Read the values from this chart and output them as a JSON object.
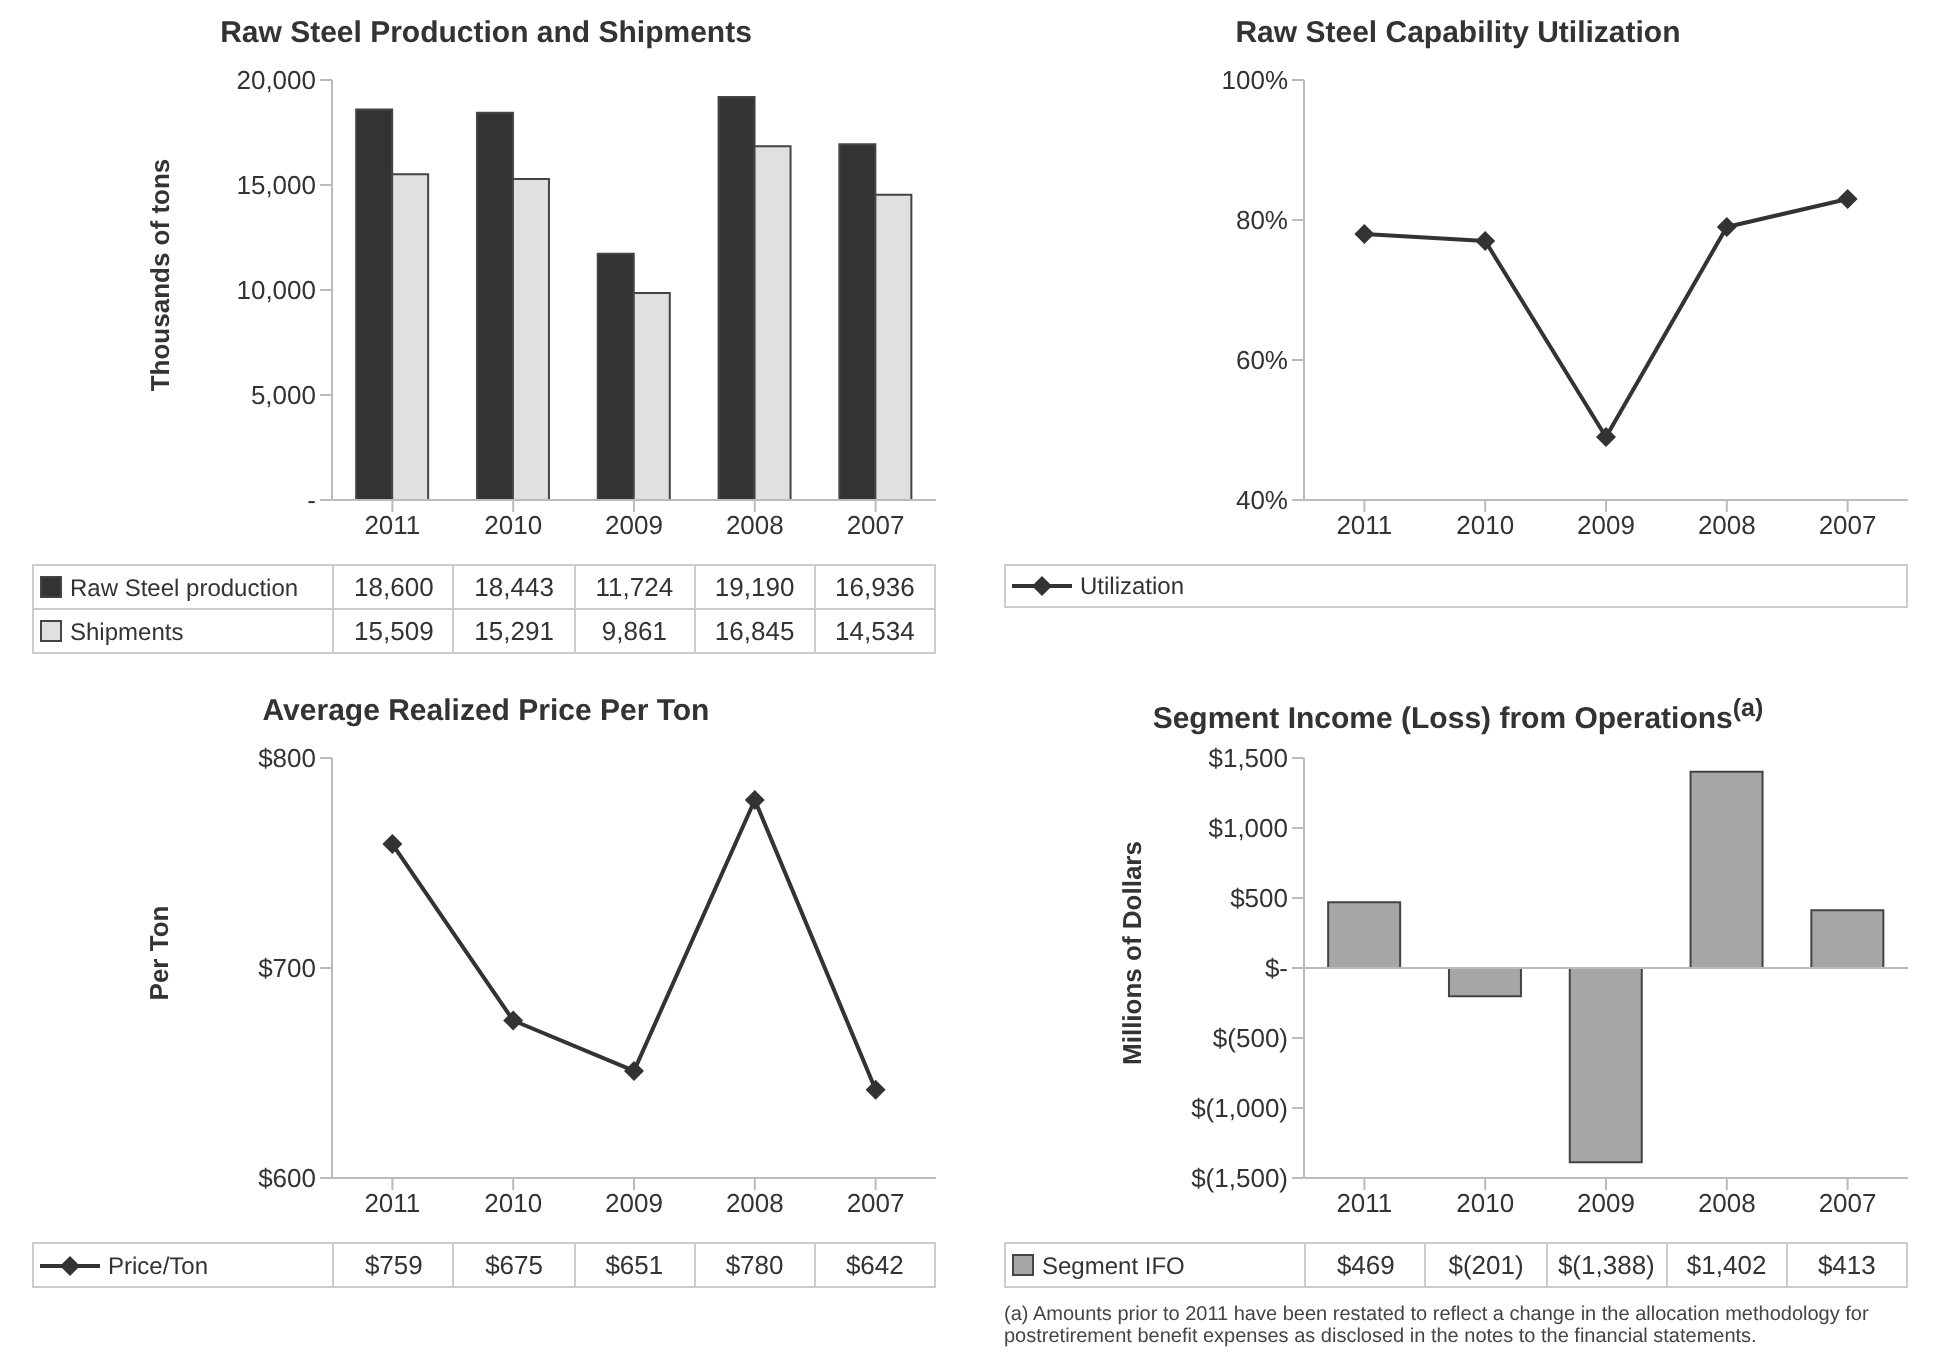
{
  "chart_data": [
    {
      "type": "bar",
      "title": "Raw Steel Production and Shipments",
      "ylabel": "Thousands of tons",
      "categories": [
        "2011",
        "2010",
        "2009",
        "2008",
        "2007"
      ],
      "ylim": [
        0,
        20000
      ],
      "yticks": [
        {
          "value": 0,
          "label": "-"
        },
        {
          "value": 5000,
          "label": "5,000"
        },
        {
          "value": 10000,
          "label": "10,000"
        },
        {
          "value": 15000,
          "label": "15,000"
        },
        {
          "value": 20000,
          "label": "20,000"
        }
      ],
      "legend": "bottom",
      "series": [
        {
          "name": "Raw Steel production",
          "color": "#333333",
          "values": [
            18600,
            18443,
            11724,
            19190,
            16936
          ],
          "value_labels": [
            "18,600",
            "18,443",
            "11,724",
            "19,190",
            "16,936"
          ]
        },
        {
          "name": "Shipments",
          "color": "#e0e0e0",
          "values": [
            15509,
            15291,
            9861,
            16845,
            14534
          ],
          "value_labels": [
            "15,509",
            "15,291",
            "9,861",
            "16,845",
            "14,534"
          ]
        }
      ]
    },
    {
      "type": "line",
      "title": "Raw Steel Capability Utilization",
      "categories": [
        "2011",
        "2010",
        "2009",
        "2008",
        "2007"
      ],
      "ylim": [
        40,
        100
      ],
      "yticks": [
        {
          "value": 40,
          "label": "40%"
        },
        {
          "value": 60,
          "label": "60%"
        },
        {
          "value": 80,
          "label": "80%"
        },
        {
          "value": 100,
          "label": "100%"
        }
      ],
      "legend": "bottom",
      "marker": "diamond",
      "series": [
        {
          "name": "Utilization",
          "color": "#333333",
          "values": [
            78,
            77,
            49,
            79,
            83
          ]
        }
      ]
    },
    {
      "type": "line",
      "title": "Average Realized Price Per Ton",
      "ylabel": "Per Ton",
      "categories": [
        "2011",
        "2010",
        "2009",
        "2008",
        "2007"
      ],
      "ylim": [
        600,
        800
      ],
      "yticks": [
        {
          "value": 600,
          "label": "$600"
        },
        {
          "value": 700,
          "label": "$700"
        },
        {
          "value": 800,
          "label": "$800"
        }
      ],
      "legend": "bottom",
      "marker": "diamond",
      "series": [
        {
          "name": "Price/Ton",
          "color": "#333333",
          "values": [
            759,
            675,
            651,
            780,
            642
          ],
          "value_labels": [
            "$759",
            "$675",
            "$651",
            "$780",
            "$642"
          ]
        }
      ]
    },
    {
      "type": "bar",
      "title": "Segment Income (Loss) from Operations$^{(a)}$",
      "ylabel": "Millions of Dollars",
      "categories": [
        "2011",
        "2010",
        "2009",
        "2008",
        "2007"
      ],
      "ylim": [
        -1500,
        1500
      ],
      "yticks": [
        {
          "value": -1500,
          "label": "$(1,500)"
        },
        {
          "value": -1000,
          "label": "$(1,000)"
        },
        {
          "value": -500,
          "label": "$(500)"
        },
        {
          "value": 0,
          "label": "$-"
        },
        {
          "value": 500,
          "label": "$500"
        },
        {
          "value": 1000,
          "label": "$1,000"
        },
        {
          "value": 1500,
          "label": "$1,500"
        }
      ],
      "legend": "bottom",
      "ref_lines": [
        {
          "axis": "y",
          "value": 0,
          "color": "#bbbbbb"
        }
      ],
      "annotations": [
        "(a) Amounts prior to 2011 have been restated to reflect a change in the allocation methodology for postretirement benefit expenses as disclosed in the notes to the financial statements."
      ],
      "series": [
        {
          "name": "Segment IFO",
          "color": "#a6a6a6",
          "values": [
            469,
            -201,
            -1388,
            1402,
            413
          ],
          "value_labels": [
            "$469",
            "$(201)",
            "$(1,388)",
            "$1,402",
            "$413"
          ]
        }
      ]
    }
  ]
}
